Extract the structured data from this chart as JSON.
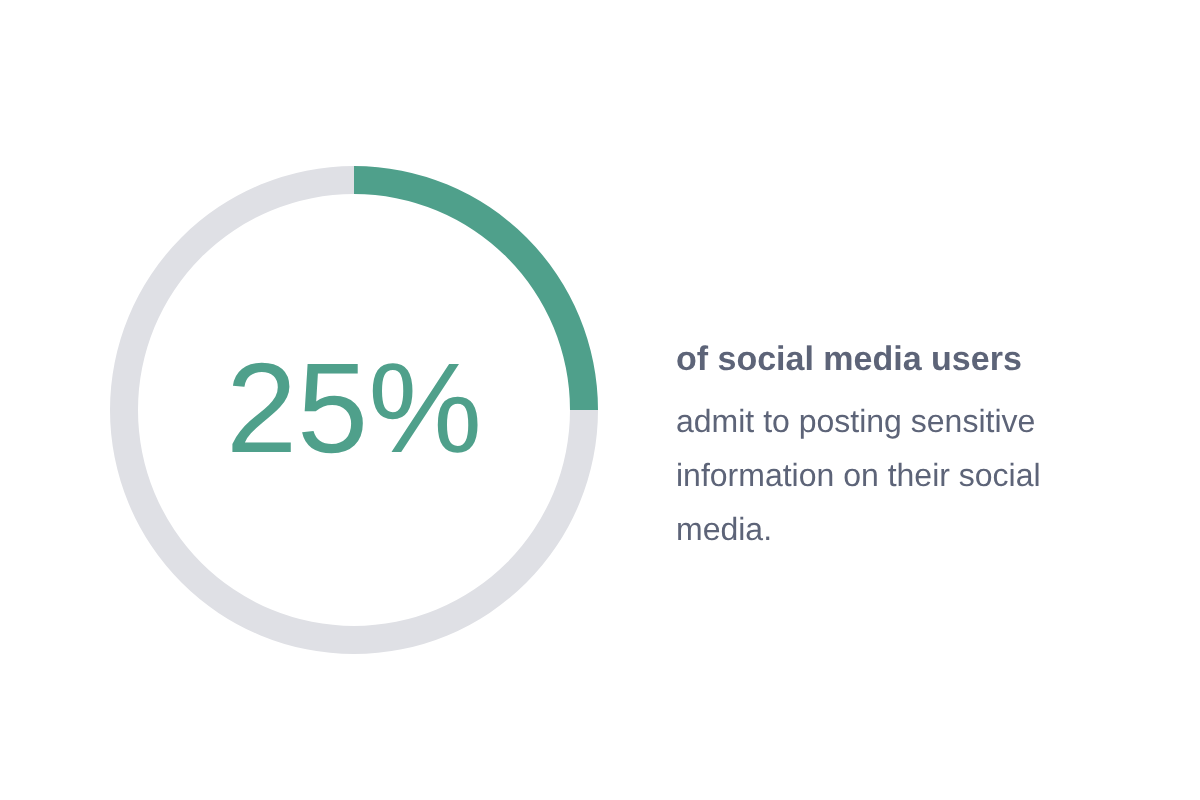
{
  "chart_data": {
    "type": "donut",
    "categories": [
      null,
      null
    ],
    "values": [
      25,
      75
    ],
    "colors": [
      "#4fa08b",
      "#dfe0e5"
    ],
    "value_labels": [
      "25%",
      null
    ],
    "annotations": [
      "of social media users",
      "admit to posting sensitive information on their social media."
    ]
  }
}
